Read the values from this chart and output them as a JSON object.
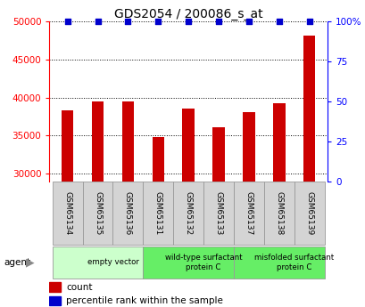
{
  "title": "GDS2054 / 200086_s_at",
  "samples": [
    "GSM65134",
    "GSM65135",
    "GSM65136",
    "GSM65131",
    "GSM65132",
    "GSM65133",
    "GSM65137",
    "GSM65138",
    "GSM65139"
  ],
  "counts": [
    38300,
    39500,
    39500,
    34800,
    38500,
    36100,
    38100,
    39300,
    48200
  ],
  "percentile_ranks": [
    100,
    100,
    100,
    100,
    100,
    100,
    100,
    100,
    100
  ],
  "bar_color": "#cc0000",
  "dot_color": "#0000cc",
  "ylim_left": [
    29000,
    50000
  ],
  "ylim_right": [
    0,
    100
  ],
  "yticks_left": [
    30000,
    35000,
    40000,
    45000,
    50000
  ],
  "yticks_right": [
    0,
    25,
    50,
    75,
    100
  ],
  "groups": [
    {
      "label": "empty vector",
      "start": 0,
      "end": 3,
      "color": "#ccffcc"
    },
    {
      "label": "wild-type surfactant\nprotein C",
      "start": 3,
      "end": 6,
      "color": "#66ee66"
    },
    {
      "label": "misfolded surfactant\nprotein C",
      "start": 6,
      "end": 9,
      "color": "#66ee66"
    }
  ],
  "agent_label": "agent",
  "legend_count_label": "count",
  "legend_pct_label": "percentile rank within the sample",
  "title_fontsize": 10,
  "tick_fontsize": 7.5,
  "bar_width": 0.4
}
